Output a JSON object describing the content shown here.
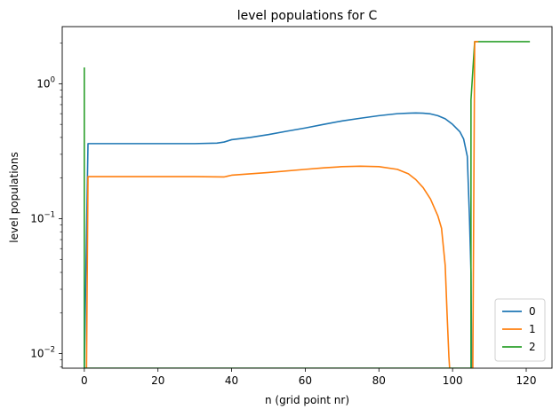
{
  "chart_data": {
    "type": "line",
    "title": "level populations for C",
    "xlabel": "n (grid point nr)",
    "ylabel": "level populations",
    "yscale": "log",
    "xlim": [
      -6,
      127
    ],
    "ylim": [
      0.0078,
      2.65
    ],
    "xticks": [
      0,
      20,
      40,
      60,
      80,
      100,
      120
    ],
    "yticks": [
      {
        "value": 0.01,
        "base": "10",
        "exp": "−2"
      },
      {
        "value": 0.1,
        "base": "10",
        "exp": "−1"
      },
      {
        "value": 1,
        "base": "10",
        "exp": "0"
      }
    ],
    "grid": false,
    "legend_position": "bottom-right",
    "series": [
      {
        "name": "0",
        "color": "#1f77b4",
        "points": [
          [
            0,
            0.0001
          ],
          [
            1,
            0.36
          ],
          [
            10,
            0.36
          ],
          [
            20,
            0.36
          ],
          [
            30,
            0.36
          ],
          [
            36,
            0.363
          ],
          [
            38,
            0.37
          ],
          [
            40,
            0.385
          ],
          [
            45,
            0.4
          ],
          [
            50,
            0.42
          ],
          [
            55,
            0.445
          ],
          [
            60,
            0.47
          ],
          [
            65,
            0.5
          ],
          [
            70,
            0.53
          ],
          [
            75,
            0.555
          ],
          [
            80,
            0.58
          ],
          [
            85,
            0.6
          ],
          [
            88,
            0.605
          ],
          [
            90,
            0.607
          ],
          [
            92,
            0.605
          ],
          [
            94,
            0.598
          ],
          [
            96,
            0.58
          ],
          [
            98,
            0.55
          ],
          [
            100,
            0.5
          ],
          [
            102,
            0.44
          ],
          [
            103,
            0.39
          ],
          [
            104,
            0.29
          ],
          [
            104.6,
            0.1
          ],
          [
            105,
            0.04
          ],
          [
            105.2,
            0.0001
          ]
        ]
      },
      {
        "name": "1",
        "color": "#ff7f0e",
        "points": [
          [
            0.6,
            0.0001
          ],
          [
            1,
            0.205
          ],
          [
            10,
            0.205
          ],
          [
            20,
            0.205
          ],
          [
            30,
            0.205
          ],
          [
            38,
            0.204
          ],
          [
            40,
            0.21
          ],
          [
            50,
            0.22
          ],
          [
            60,
            0.232
          ],
          [
            65,
            0.238
          ],
          [
            70,
            0.243
          ],
          [
            75,
            0.245
          ],
          [
            80,
            0.243
          ],
          [
            85,
            0.232
          ],
          [
            88,
            0.215
          ],
          [
            90,
            0.195
          ],
          [
            92,
            0.17
          ],
          [
            94,
            0.14
          ],
          [
            96,
            0.105
          ],
          [
            97,
            0.085
          ],
          [
            98,
            0.045
          ],
          [
            98.5,
            0.02
          ],
          [
            99,
            0.0095
          ],
          [
            99.2,
            0.0001
          ]
        ]
      },
      {
        "name": "2",
        "color": "#2ca02c",
        "points": [
          [
            0,
            1.32
          ],
          [
            0,
            0.0001
          ],
          [
            105,
            0.0001
          ],
          [
            105,
            0.76
          ],
          [
            106,
            2.05
          ],
          [
            108,
            2.05
          ],
          [
            115,
            2.05
          ],
          [
            121,
            2.05
          ]
        ]
      },
      {
        "name": "",
        "color": "#ff7f0e",
        "points": [
          [
            105.5,
            0.0001
          ],
          [
            106,
            2.05
          ],
          [
            107,
            2.05
          ]
        ]
      }
    ]
  }
}
